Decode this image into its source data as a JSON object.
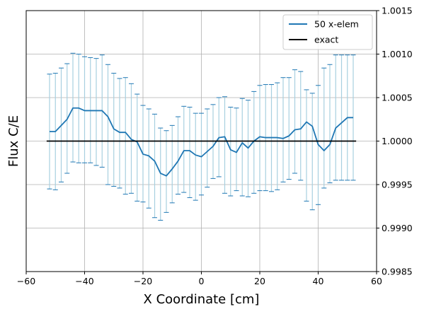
{
  "chart_data": {
    "type": "line",
    "title": "",
    "xlabel": "X Coordinate [cm]",
    "ylabel": "Flux C/E",
    "xlim": [
      -60,
      60
    ],
    "ylim": [
      0.9985,
      1.0015
    ],
    "xticks": [
      -60,
      -40,
      -20,
      0,
      20,
      40,
      60
    ],
    "xtick_labels": [
      "−60",
      "−40",
      "−20",
      "0",
      "20",
      "40",
      "60"
    ],
    "yticks": [
      0.9985,
      0.999,
      0.9995,
      1.0,
      1.0005,
      1.001,
      1.0015
    ],
    "ytick_labels": [
      "0.9985",
      "0.9990",
      "0.9995",
      "1.0000",
      "1.0005",
      "1.0010",
      "1.0015"
    ],
    "y_axis_position": "right",
    "grid": true,
    "legend_position": "top-right",
    "colors": {
      "series": "#1f77b4",
      "exact": "#000000",
      "errorbar": "#a8d0e0",
      "grid": "#b0b0b0"
    },
    "series": [
      {
        "name": "50 x-elem",
        "x": [
          -52,
          -50,
          -48,
          -46,
          -44,
          -42,
          -40,
          -38,
          -36,
          -34,
          -32,
          -30,
          -28,
          -26,
          -24,
          -22,
          -20,
          -18,
          -16,
          -14,
          -12,
          -10,
          -8,
          -6,
          -4,
          -2,
          0,
          2,
          4,
          6,
          8,
          10,
          12,
          14,
          16,
          18,
          20,
          22,
          24,
          26,
          28,
          30,
          32,
          34,
          36,
          38,
          40,
          42,
          44,
          46,
          48,
          50,
          52
        ],
        "y": [
          1.00011,
          1.00011,
          1.00018,
          1.00025,
          1.00038,
          1.00038,
          1.00035,
          1.00035,
          1.00035,
          1.00035,
          1.00028,
          1.00014,
          1.0001,
          1.0001,
          1.00002,
          0.99999,
          0.99985,
          0.99983,
          0.99977,
          0.99963,
          0.9996,
          0.99968,
          0.99977,
          0.99989,
          0.99989,
          0.99984,
          0.99982,
          0.99988,
          0.99994,
          1.00004,
          1.00005,
          0.9999,
          0.99987,
          0.99998,
          0.99992,
          1.0,
          1.00005,
          1.00004,
          1.00004,
          1.00004,
          1.00003,
          1.00006,
          1.00013,
          1.00014,
          1.00022,
          1.00017,
          0.99996,
          0.99989,
          0.99996,
          1.00015,
          1.00021,
          1.00027,
          1.00027
        ],
        "yerr_upper": [
          1.00077,
          1.00078,
          1.00084,
          1.00089,
          1.00101,
          1.001,
          1.00097,
          1.00096,
          1.00095,
          1.00099,
          1.00088,
          1.00078,
          1.00072,
          1.00073,
          1.00066,
          1.00054,
          1.00041,
          1.00037,
          1.00031,
          1.00015,
          1.00012,
          1.00018,
          1.00028,
          1.0004,
          1.00039,
          1.00032,
          1.00032,
          1.00037,
          1.00042,
          1.0005,
          1.00051,
          1.00039,
          1.00038,
          1.00049,
          1.00047,
          1.00057,
          1.00064,
          1.00065,
          1.00065,
          1.00067,
          1.00073,
          1.00073,
          1.00082,
          1.0008,
          1.00059,
          1.00055,
          1.00064,
          1.00084,
          1.00088,
          1.00099,
          1.00099,
          1.00099,
          1.00099
        ],
        "yerr_lower": [
          0.99945,
          0.99944,
          0.99953,
          0.99963,
          0.99976,
          0.99975,
          0.99975,
          0.99975,
          0.99972,
          0.9997,
          0.9995,
          0.99948,
          0.99946,
          0.99939,
          0.9994,
          0.99931,
          0.9993,
          0.99923,
          0.99912,
          0.99909,
          0.99918,
          0.99929,
          0.99939,
          0.99941,
          0.99935,
          0.99932,
          0.99938,
          0.99947,
          0.99957,
          0.99959,
          0.9994,
          0.99937,
          0.99943,
          0.99937,
          0.99936,
          0.9994,
          0.99943,
          0.99943,
          0.99942,
          0.99944,
          0.99953,
          0.99956,
          0.99963,
          0.99955,
          0.99931,
          0.99921,
          0.99927,
          0.99946,
          0.99952,
          0.99955,
          0.99955,
          0.99955,
          0.99955
        ]
      },
      {
        "name": "exact",
        "x": [
          -53,
          53
        ],
        "y": [
          1.0,
          1.0
        ]
      }
    ]
  }
}
